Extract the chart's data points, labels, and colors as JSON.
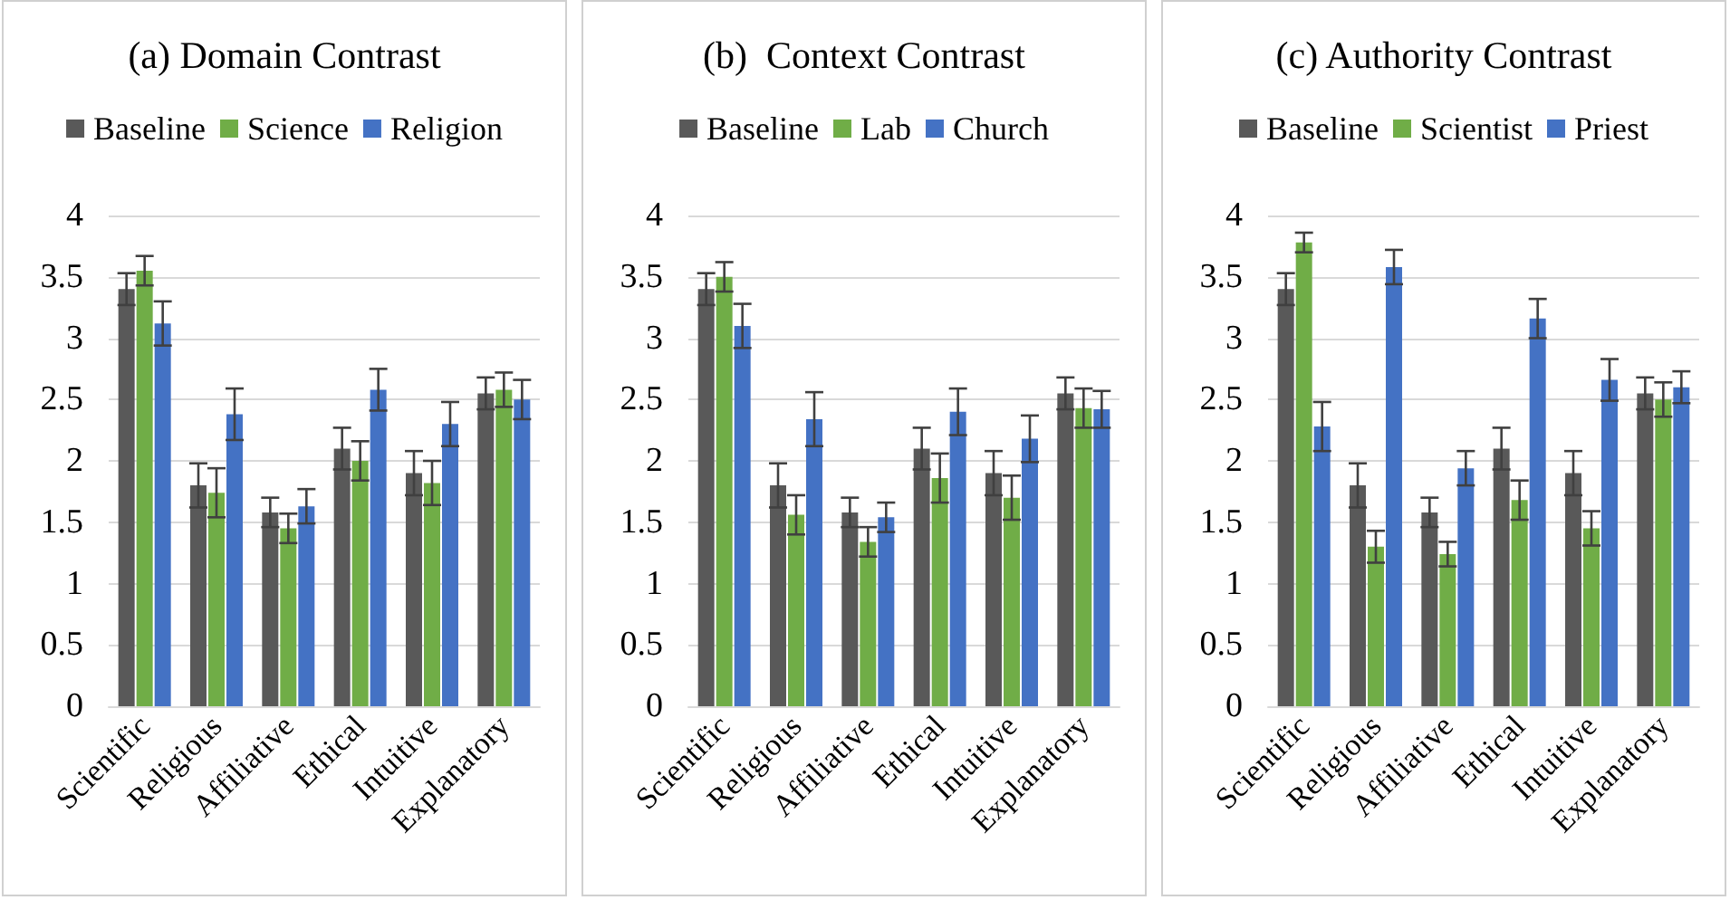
{
  "chart_data": [
    {
      "type": "bar",
      "title": "(a) Domain Contrast",
      "categories": [
        "Scientific",
        "Religious",
        "Affiliative",
        "Ethical",
        "Intuitive",
        "Explanatory"
      ],
      "series": [
        {
          "name": "Baseline",
          "color": "#595959",
          "values": [
            3.4,
            1.8,
            1.58,
            2.1,
            1.9,
            2.55
          ],
          "errors": [
            0.13,
            0.18,
            0.12,
            0.17,
            0.18,
            0.13
          ]
        },
        {
          "name": "Science",
          "color": "#70ad47",
          "values": [
            3.55,
            1.74,
            1.45,
            2.0,
            1.82,
            2.58
          ],
          "errors": [
            0.12,
            0.2,
            0.12,
            0.16,
            0.18,
            0.14
          ]
        },
        {
          "name": "Religion",
          "color": "#4472c4",
          "values": [
            3.12,
            2.38,
            1.63,
            2.58,
            2.3,
            2.5
          ],
          "errors": [
            0.18,
            0.21,
            0.14,
            0.17,
            0.18,
            0.16
          ]
        }
      ],
      "ylim": [
        0,
        4
      ],
      "yticks": [
        0,
        0.5,
        1,
        1.5,
        2,
        2.5,
        3,
        3.5,
        4
      ],
      "grid": "y",
      "legend": "top"
    },
    {
      "type": "bar",
      "title": "(b)  Context Contrast",
      "categories": [
        "Scientific",
        "Religious",
        "Affiliative",
        "Ethical",
        "Intuitive",
        "Explanatory"
      ],
      "series": [
        {
          "name": "Baseline",
          "color": "#595959",
          "values": [
            3.4,
            1.8,
            1.58,
            2.1,
            1.9,
            2.55
          ],
          "errors": [
            0.13,
            0.18,
            0.12,
            0.17,
            0.18,
            0.13
          ]
        },
        {
          "name": "Lab",
          "color": "#70ad47",
          "values": [
            3.5,
            1.56,
            1.34,
            1.86,
            1.7,
            2.43
          ],
          "errors": [
            0.12,
            0.16,
            0.12,
            0.2,
            0.18,
            0.16
          ]
        },
        {
          "name": "Church",
          "color": "#4472c4",
          "values": [
            3.1,
            2.34,
            1.54,
            2.4,
            2.18,
            2.42
          ],
          "errors": [
            0.18,
            0.22,
            0.12,
            0.19,
            0.19,
            0.15
          ]
        }
      ],
      "ylim": [
        0,
        4
      ],
      "yticks": [
        0,
        0.5,
        1,
        1.5,
        2,
        2.5,
        3,
        3.5,
        4
      ],
      "grid": "y",
      "legend": "top"
    },
    {
      "type": "bar",
      "title": "(c) Authority Contrast",
      "categories": [
        "Scientific",
        "Religious",
        "Affiliative",
        "Ethical",
        "Intuitive",
        "Explanatory"
      ],
      "series": [
        {
          "name": "Baseline",
          "color": "#595959",
          "values": [
            3.4,
            1.8,
            1.58,
            2.1,
            1.9,
            2.55
          ],
          "errors": [
            0.13,
            0.18,
            0.12,
            0.17,
            0.18,
            0.13
          ]
        },
        {
          "name": "Scientist",
          "color": "#70ad47",
          "values": [
            3.78,
            1.3,
            1.24,
            1.68,
            1.45,
            2.5
          ],
          "errors": [
            0.08,
            0.13,
            0.1,
            0.16,
            0.14,
            0.14
          ]
        },
        {
          "name": "Priest",
          "color": "#4472c4",
          "values": [
            2.28,
            3.58,
            1.94,
            3.16,
            2.66,
            2.6
          ],
          "errors": [
            0.2,
            0.14,
            0.14,
            0.16,
            0.17,
            0.13
          ]
        }
      ],
      "ylim": [
        0,
        4
      ],
      "yticks": [
        0,
        0.5,
        1,
        1.5,
        2,
        2.5,
        3,
        3.5,
        4
      ],
      "grid": "y",
      "legend": "top"
    }
  ]
}
